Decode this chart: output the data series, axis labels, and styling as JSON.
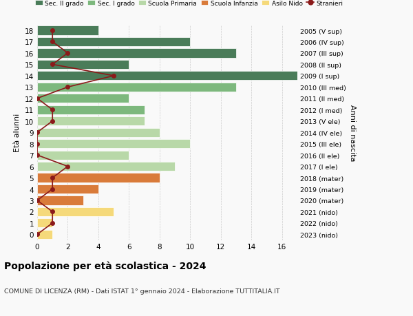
{
  "ages": [
    18,
    17,
    16,
    15,
    14,
    13,
    12,
    11,
    10,
    9,
    8,
    7,
    6,
    5,
    4,
    3,
    2,
    1,
    0
  ],
  "right_labels": [
    "2005 (V sup)",
    "2006 (IV sup)",
    "2007 (III sup)",
    "2008 (II sup)",
    "2009 (I sup)",
    "2010 (III med)",
    "2011 (II med)",
    "2012 (I med)",
    "2013 (V ele)",
    "2014 (IV ele)",
    "2015 (III ele)",
    "2016 (II ele)",
    "2017 (I ele)",
    "2018 (mater)",
    "2019 (mater)",
    "2020 (mater)",
    "2021 (nido)",
    "2022 (nido)",
    "2023 (nido)"
  ],
  "bar_values": [
    4,
    10,
    13,
    6,
    17,
    13,
    6,
    7,
    7,
    8,
    10,
    6,
    9,
    8,
    4,
    3,
    5,
    1,
    1
  ],
  "bar_colors": [
    "#4a7c59",
    "#4a7c59",
    "#4a7c59",
    "#4a7c59",
    "#4a7c59",
    "#7db87d",
    "#7db87d",
    "#7db87d",
    "#b8d8a8",
    "#b8d8a8",
    "#b8d8a8",
    "#b8d8a8",
    "#b8d8a8",
    "#d97b3a",
    "#d97b3a",
    "#d97b3a",
    "#f5d97a",
    "#f5d97a",
    "#f5d97a"
  ],
  "stranieri_values": [
    1,
    1,
    2,
    1,
    5,
    2,
    0,
    1,
    1,
    0,
    0,
    0,
    2,
    1,
    1,
    0,
    1,
    1,
    0
  ],
  "stranieri_color": "#8b1a1a",
  "xlim": [
    0,
    17
  ],
  "xticks": [
    0,
    2,
    4,
    6,
    8,
    10,
    12,
    14,
    16
  ],
  "title": "Popolazione per età scolastica - 2024",
  "subtitle": "COMUNE DI LICENZA (RM) - Dati ISTAT 1° gennaio 2024 - Elaborazione TUTTITALIA.IT",
  "ylabel_left": "Età alunni",
  "ylabel_right": "Anni di nascita",
  "legend_labels": [
    "Sec. II grado",
    "Sec. I grado",
    "Scuola Primaria",
    "Scuola Infanzia",
    "Asilo Nido",
    "Stranieri"
  ],
  "legend_colors": [
    "#4a7c59",
    "#7db87d",
    "#b8d8a8",
    "#d97b3a",
    "#f5d97a",
    "#8b1a1a"
  ],
  "bg_color": "#f9f9f9",
  "grid_color": "#cccccc"
}
